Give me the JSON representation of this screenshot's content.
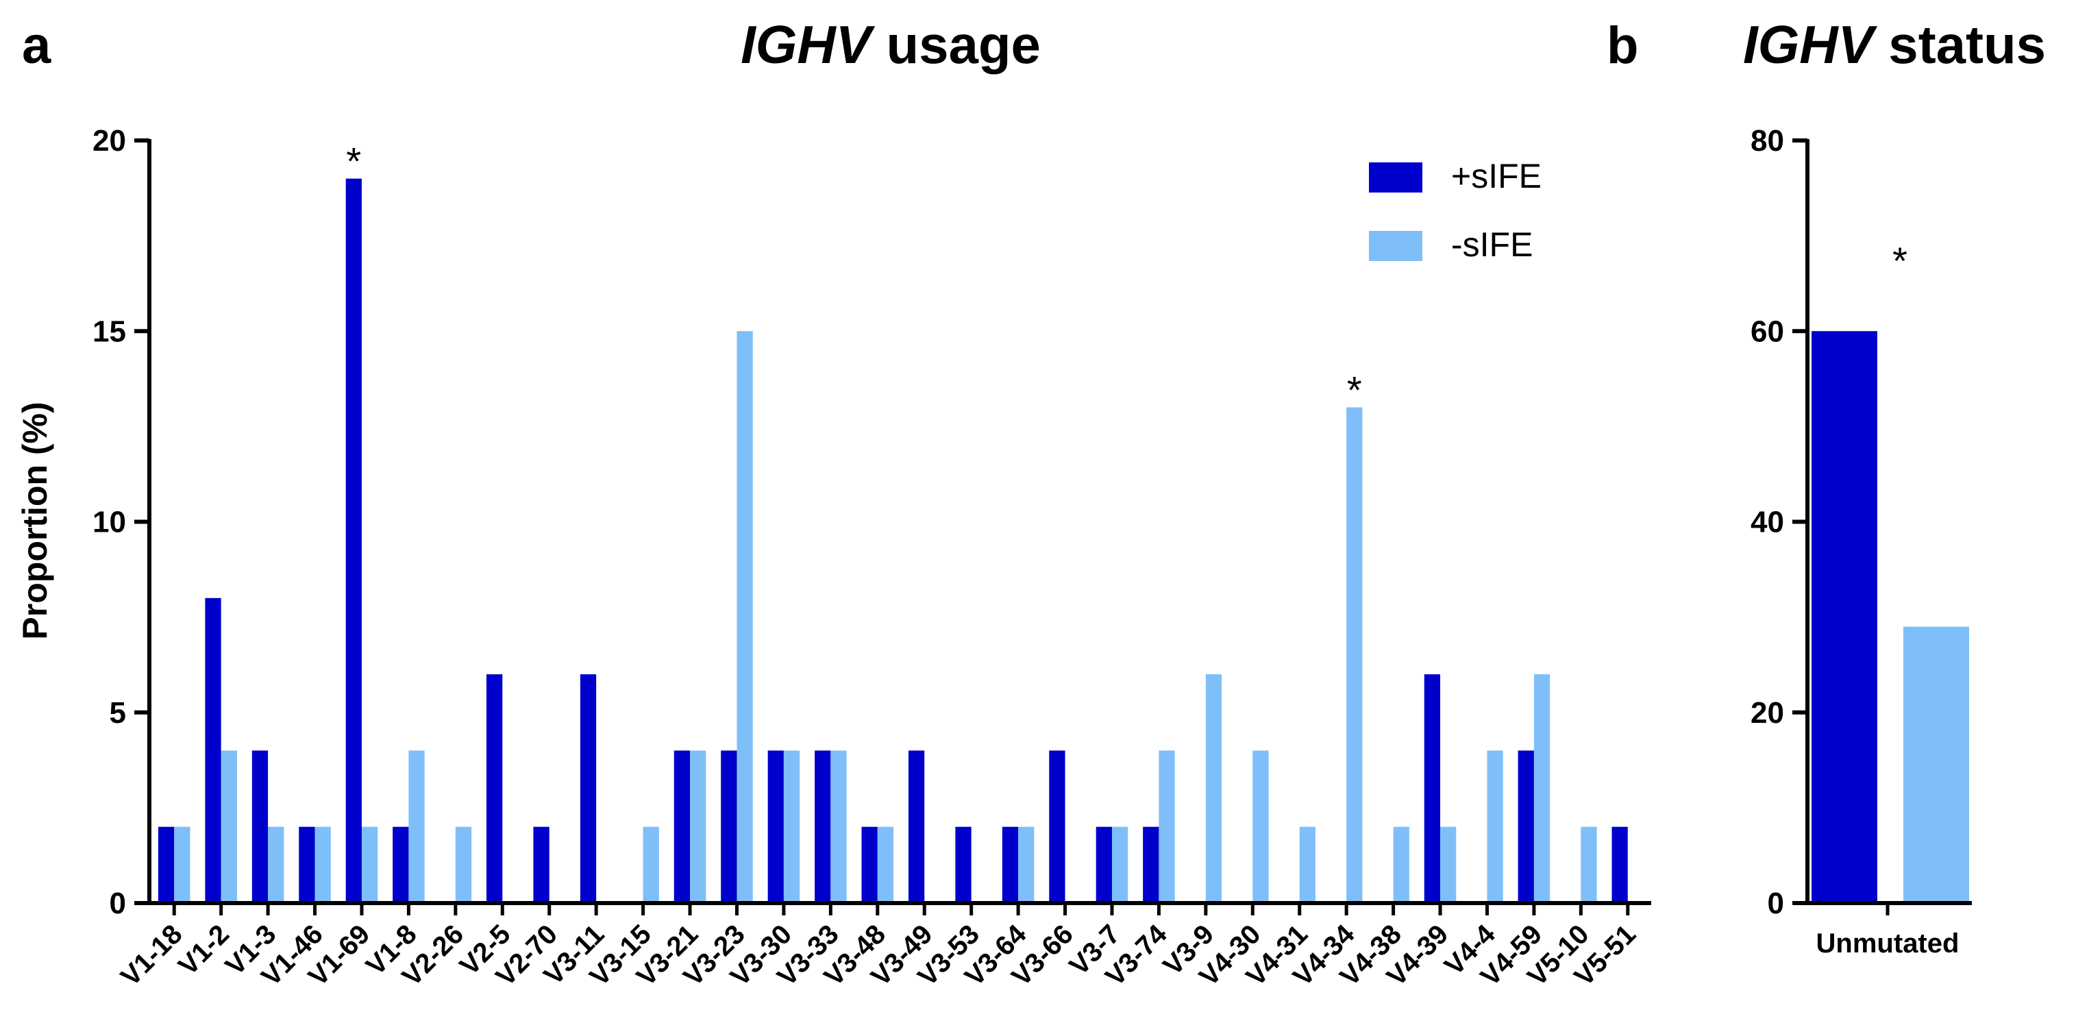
{
  "panels": {
    "a_letter": "a",
    "b_letter": "b"
  },
  "colors": {
    "pos": "#0000cc",
    "neg": "#7fbff9",
    "axis": "#000000"
  },
  "chart_data": [
    {
      "type": "bar",
      "title_italic": "IGHV",
      "title_rest": " usage",
      "xlabel": "",
      "ylabel": "Proportion (%)",
      "ylim": [
        0,
        20
      ],
      "yticks": [
        "0",
        "5",
        "10",
        "15",
        "20"
      ],
      "legend_position": "top-right",
      "categories": [
        "V1-18",
        "V1-2",
        "V1-3",
        "V1-46",
        "V1-69",
        "V1-8",
        "V2-26",
        "V2-5",
        "V2-70",
        "V3-11",
        "V3-15",
        "V3-21",
        "V3-23",
        "V3-30",
        "V3-33",
        "V3-48",
        "V3-49",
        "V3-53",
        "V3-64",
        "V3-66",
        "V3-7",
        "V3-74",
        "V3-9",
        "V4-30",
        "V4-31",
        "V4-34",
        "V4-38",
        "V4-39",
        "V4-4",
        "V4-59",
        "V5-10",
        "V5-51"
      ],
      "series": [
        {
          "name": "+sIFE",
          "values": [
            2,
            8,
            4,
            2,
            19,
            2,
            0,
            6,
            2,
            6,
            0,
            4,
            4,
            4,
            4,
            2,
            4,
            2,
            2,
            4,
            2,
            2,
            0,
            0,
            0,
            0,
            0,
            6,
            0,
            4,
            0,
            2
          ]
        },
        {
          "name": "-sIFE",
          "values": [
            2,
            4,
            2,
            2,
            2,
            4,
            2,
            0,
            0,
            0,
            2,
            4,
            15,
            4,
            4,
            2,
            0,
            0,
            2,
            0,
            2,
            4,
            6,
            4,
            2,
            13,
            2,
            2,
            4,
            6,
            2,
            0
          ]
        }
      ],
      "annotations": [
        {
          "category": "V1-69",
          "series": "+sIFE",
          "text": "*"
        },
        {
          "category": "V4-34",
          "series": "-sIFE",
          "text": "*"
        }
      ]
    },
    {
      "type": "bar",
      "title_italic": "IGHV",
      "title_rest": " status",
      "xlabel": "",
      "ylabel": "",
      "ylim": [
        0,
        80
      ],
      "yticks": [
        "0",
        "20",
        "40",
        "60",
        "80"
      ],
      "categories": [
        "Unmutated"
      ],
      "series": [
        {
          "name": "+sIFE",
          "values": [
            60
          ]
        },
        {
          "name": "-sIFE",
          "values": [
            29
          ]
        }
      ],
      "annotations": [
        {
          "category": "Unmutated",
          "text": "*"
        }
      ]
    }
  ]
}
